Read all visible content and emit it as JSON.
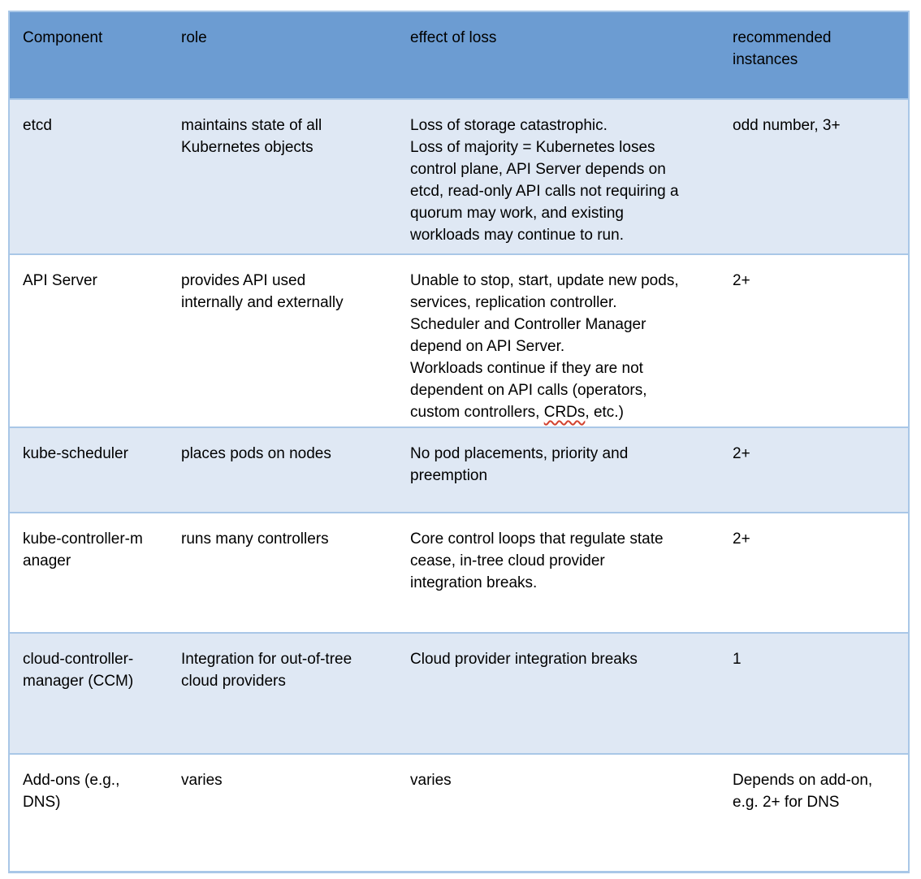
{
  "table": {
    "header": {
      "component": "Component",
      "role": "role",
      "effect": "effect of loss",
      "recommended": "recommended\ninstances"
    },
    "rows": [
      {
        "component": "etcd",
        "role": "maintains state of all\nKubernetes objects",
        "effect": "Loss of storage catastrophic.\nLoss of majority = Kubernetes loses\ncontrol plane, API Server depends on\netcd, read-only API calls not requiring a\nquorum may work, and existing\nworkloads may continue to run.",
        "recommended": "odd number, 3+"
      },
      {
        "component": "API Server",
        "role": "provides API used\ninternally and externally",
        "effect_before": "Unable to stop, start, update new pods,\nservices, replication controller.\nScheduler and Controller Manager\ndepend on API Server.\nWorkloads continue if they are not\ndependent on API calls (operators,\ncustom controllers, ",
        "effect_misspelled": "CRDs",
        "effect_after": ", etc.)",
        "recommended": "2+"
      },
      {
        "component": "kube-scheduler",
        "role": "places pods on nodes",
        "effect": "No pod placements, priority and\npreemption",
        "recommended": "2+"
      },
      {
        "component": "kube-controller-m\nanager",
        "role": "runs many controllers",
        "effect": "Core control loops that regulate state\ncease, in-tree cloud provider\nintegration breaks.",
        "recommended": "2+"
      },
      {
        "component": "cloud-controller-\nmanager (CCM)",
        "role": "Integration for out-of-tree\ncloud providers",
        "effect": "Cloud provider integration breaks",
        "recommended": "1"
      },
      {
        "component": "Add-ons (e.g.,\nDNS)",
        "role": "varies",
        "effect": "varies",
        "recommended": "Depends on add-on,\ne.g. 2+ for DNS"
      }
    ]
  },
  "colors": {
    "header_bg": "#6c9cd2",
    "band_bg": "#dfe8f4",
    "white_bg": "#ffffff",
    "border": "#a9c7e7",
    "text": "#000000",
    "spell_red": "#d2422f"
  }
}
